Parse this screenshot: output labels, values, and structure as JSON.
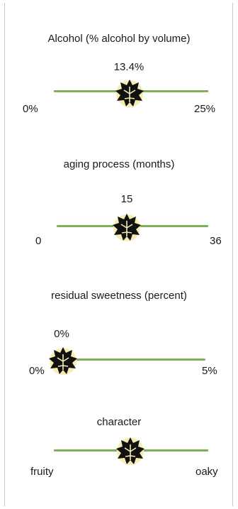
{
  "sliders": [
    {
      "title": "Alcohol (% alcohol by volume)",
      "value_label": "13.4%",
      "min_label": "0%",
      "max_label": "25%",
      "level_fraction": 0.536
    },
    {
      "title": "aging process (months)",
      "value_label": "15",
      "min_label": "0",
      "max_label": "36",
      "level_fraction": 0.417
    },
    {
      "title": "residual sweetness (percent)",
      "value_label": "0%",
      "min_label": "0%",
      "max_label": "5%",
      "level_fraction": 0.0
    },
    {
      "title": "character",
      "value_label": "",
      "min_label": "fruity",
      "max_label": "oaky",
      "level_fraction": 0.5
    }
  ],
  "colors": {
    "track": "#7fb057",
    "thumb": "#111111",
    "thumb_highlight": "#f6edb0"
  },
  "icons": {
    "thumb": "grape-leaf-icon"
  }
}
